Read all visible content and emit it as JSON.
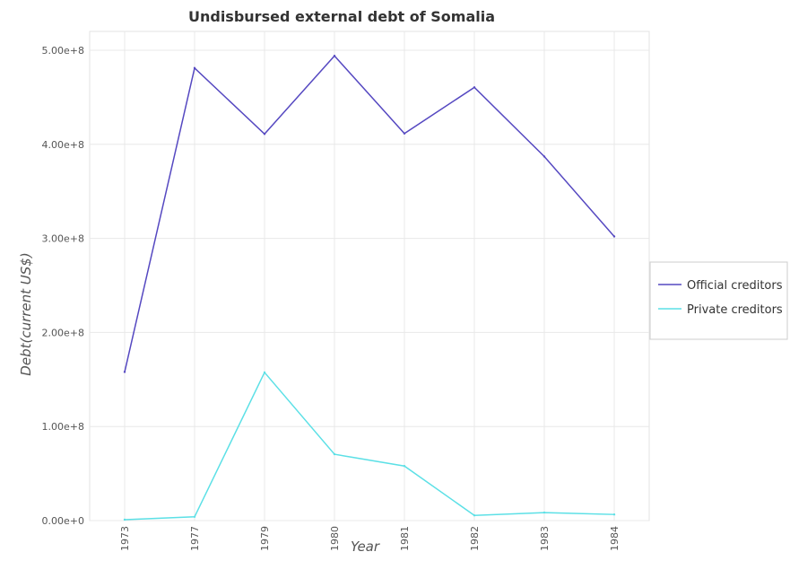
{
  "chart_data": {
    "type": "line",
    "title": "Undisbursed external debt of Somalia",
    "xlabel": "Year",
    "ylabel": "Debt(current US$)",
    "categories": [
      "1973",
      "1977",
      "1979",
      "1980",
      "1981",
      "1982",
      "1983",
      "1984"
    ],
    "ylim": [
      0,
      520000000
    ],
    "yticks": [
      0,
      100000000,
      200000000,
      300000000,
      400000000,
      500000000
    ],
    "ytick_labels": [
      "0.00e+0",
      "1.00e+8",
      "2.00e+8",
      "3.00e+8",
      "4.00e+8",
      "5.00e+8"
    ],
    "grid": true,
    "legend_position": "right",
    "series": [
      {
        "name": "Official creditors",
        "color": "#5548c1",
        "values": [
          158000000,
          481000000,
          411000000,
          494000000,
          411500000,
          460500000,
          387000000,
          302000000
        ]
      },
      {
        "name": "Private creditors",
        "color": "#5ce0e6",
        "values": [
          1000000,
          4000000,
          157500000,
          70500000,
          58000000,
          5500000,
          8500000,
          6500000
        ]
      }
    ]
  }
}
